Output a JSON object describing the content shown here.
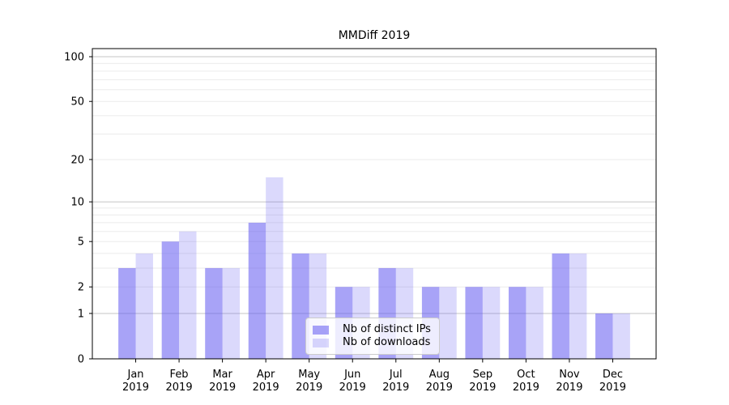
{
  "title": "MMDiff 2019",
  "chart_data": {
    "type": "bar",
    "title": "MMDiff 2019",
    "categories": [
      "Jan 2019",
      "Feb 2019",
      "Mar 2019",
      "Apr 2019",
      "May 2019",
      "Jun 2019",
      "Jul 2019",
      "Aug 2019",
      "Sep 2019",
      "Oct 2019",
      "Nov 2019",
      "Dec 2019"
    ],
    "x_tick_months": [
      "Jan",
      "Feb",
      "Mar",
      "Apr",
      "May",
      "Jun",
      "Jul",
      "Aug",
      "Sep",
      "Oct",
      "Nov",
      "Dec"
    ],
    "x_tick_year": "2019",
    "series": [
      {
        "name": "Nb of distinct IPs",
        "color": "rgba(90,82,240,0.53)",
        "values": [
          3,
          5,
          3,
          7,
          4,
          2,
          3,
          2,
          2,
          2,
          4,
          1
        ]
      },
      {
        "name": "Nb of downloads",
        "color": "rgba(90,82,240,0.22)",
        "values": [
          4,
          6,
          3,
          15,
          4,
          2,
          3,
          2,
          2,
          2,
          4,
          1
        ]
      }
    ],
    "xlabel": "",
    "ylabel": "",
    "yaxis": {
      "scale": "symlog ln(1+x)",
      "tick_labels": [
        "0",
        "1",
        "2",
        "5",
        "10",
        "20",
        "50",
        "100"
      ],
      "tick_values": [
        0,
        1,
        2,
        5,
        10,
        20,
        50,
        100
      ],
      "major_gridlines": [
        1,
        10,
        100
      ],
      "minor_gridlines": [
        2,
        3,
        4,
        5,
        6,
        7,
        8,
        9,
        20,
        30,
        40,
        50,
        60,
        70,
        80,
        90
      ],
      "ylim": [
        0,
        113
      ]
    },
    "legend": {
      "position": "lower center",
      "entries": [
        "Nb of distinct IPs",
        "Nb of downloads"
      ]
    },
    "grid": true
  },
  "colors": {
    "grid_major": "#c6c6c6",
    "grid_minor": "#ebebeb",
    "axis": "#000000",
    "text": "#000000",
    "legend_border": "#cccccc",
    "legend_background": "rgba(255,255,255,0.8)",
    "figure_background": "#ffffff"
  }
}
